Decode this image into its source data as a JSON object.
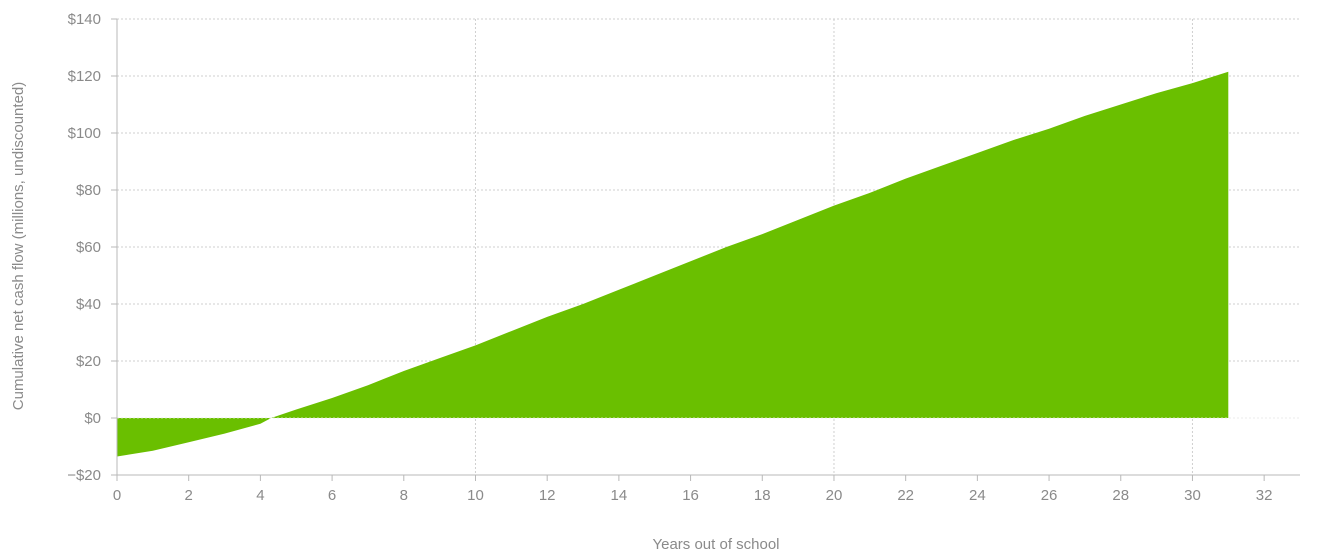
{
  "chart_data": {
    "type": "area",
    "title": "",
    "xlabel": "Years out of school",
    "ylabel": "Cumulative net cash flow (millions, undiscounted)",
    "xlim": [
      0,
      33
    ],
    "ylim": [
      -20,
      140
    ],
    "x_ticks": [
      0,
      2,
      4,
      6,
      8,
      10,
      12,
      14,
      16,
      18,
      20,
      22,
      24,
      26,
      28,
      30,
      32
    ],
    "y_ticks": [
      -20,
      0,
      20,
      40,
      60,
      80,
      100,
      120,
      140
    ],
    "y_tick_labels": [
      "−$20",
      "$0",
      "$20",
      "$40",
      "$60",
      "$80",
      "$100",
      "$120",
      "$140"
    ],
    "grid": true,
    "colors": {
      "area": "#6abf00",
      "grid": "#cfcfcf",
      "text": "#8a8a8a"
    },
    "series": [
      {
        "x": [
          0,
          1,
          2,
          3,
          4,
          4.3,
          5,
          6,
          7,
          8,
          9,
          10,
          11,
          12,
          13,
          14,
          15,
          16,
          17,
          18,
          19,
          20,
          21,
          22,
          23,
          24,
          25,
          26,
          27,
          28,
          29,
          30,
          31
        ],
        "values": [
          -13.5,
          -11.5,
          -8.5,
          -5.5,
          -2,
          0,
          3,
          7,
          11.5,
          16.5,
          21,
          25.5,
          30.5,
          35.5,
          40,
          45,
          50,
          55,
          60,
          64.5,
          69.5,
          74.5,
          79,
          84,
          88.5,
          93,
          97.5,
          101.5,
          106,
          110,
          114,
          117.5,
          121.5
        ]
      }
    ]
  }
}
